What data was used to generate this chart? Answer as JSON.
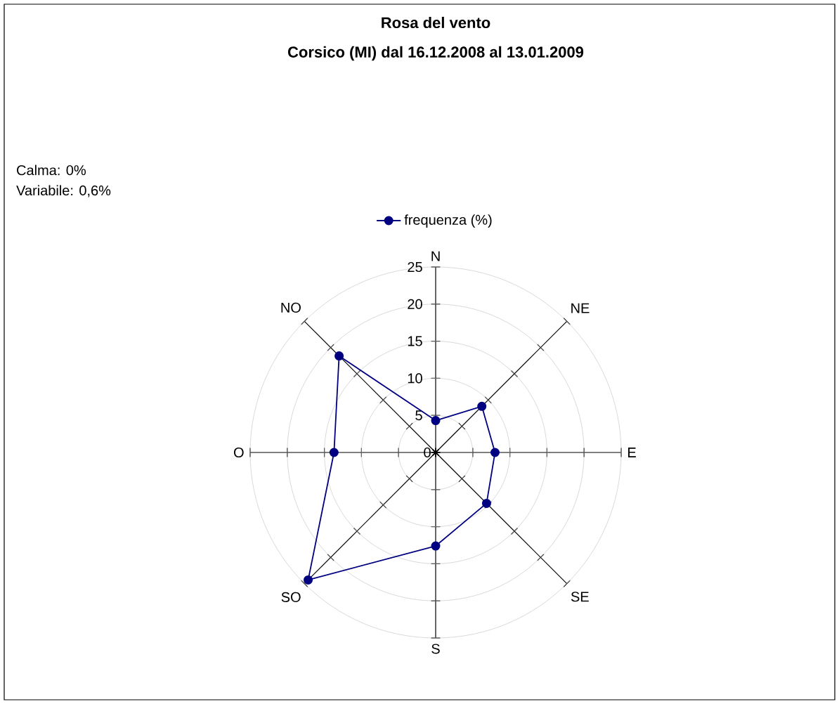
{
  "chart_data": {
    "type": "radar",
    "title": "Rosa del vento",
    "subtitle": "Corsico (MI) dal 16.12.2008 al 13.01.2009",
    "annotations": [
      "Calma: 0%",
      "Variabile:  0,6%"
    ],
    "categories": [
      "N",
      "NE",
      "E",
      "SE",
      "S",
      "SO",
      "O",
      "NO"
    ],
    "series": [
      {
        "name": "frequenza (%)",
        "color": "#000080",
        "values": [
          4.3,
          8.8,
          8.0,
          9.7,
          12.6,
          24.3,
          13.7,
          18.4
        ]
      }
    ],
    "ylim": [
      0,
      25
    ],
    "yticks": [
      0,
      5,
      10,
      15,
      20,
      25
    ],
    "marker": "circle",
    "grid": "y",
    "legend": "top"
  }
}
